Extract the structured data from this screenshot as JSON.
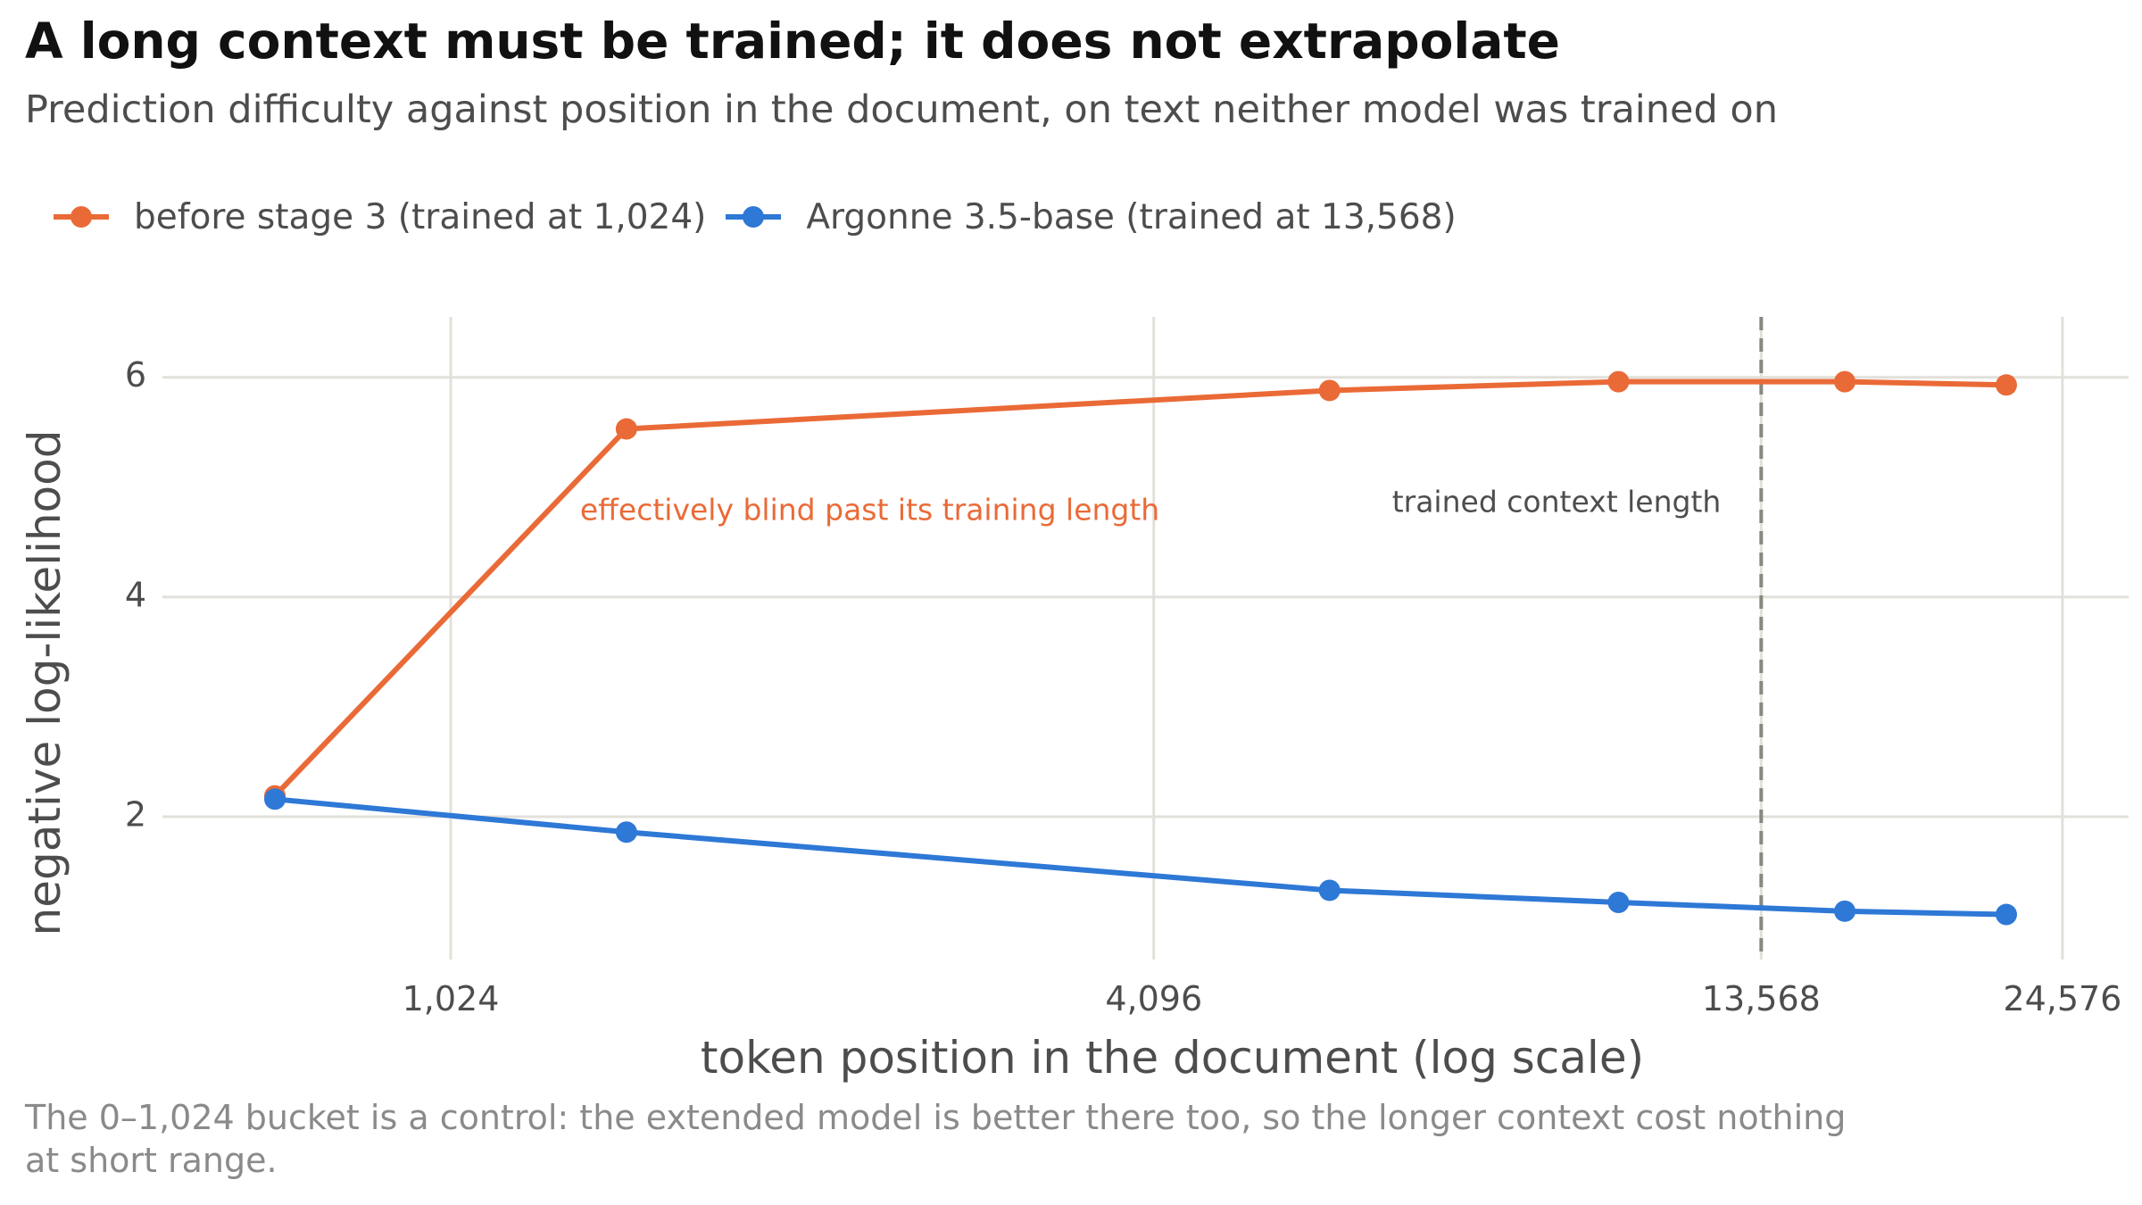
{
  "chart_data": {
    "type": "line",
    "title": "A long context must be trained; it does not extrapolate",
    "subtitle": "Prediction difficulty against position in the document, on text neither model was trained on",
    "xlabel": "token position in the document (log scale)",
    "ylabel": "negative log-likelihood",
    "x_scale": "log",
    "xlim": [
      580,
      28000
    ],
    "ylim": [
      0.7,
      6.55
    ],
    "x_ticks": [
      1024,
      4096,
      13568,
      24576
    ],
    "x_tick_labels": [
      "1,024",
      "4,096",
      "13,568",
      "24,576"
    ],
    "y_ticks": [
      2,
      4,
      6
    ],
    "y_tick_labels": [
      "2",
      "4",
      "6"
    ],
    "grid": true,
    "legend_placement": "top-left",
    "series": [
      {
        "name": "before stage 3 (trained at 1,024)",
        "color": "#ea6a37",
        "x": [
          724,
          1448,
          5793,
          10240,
          16000,
          22000
        ],
        "y": [
          2.19,
          5.53,
          5.88,
          5.96,
          5.96,
          5.93
        ]
      },
      {
        "name": "Argonne 3.5-base (trained at 13,568)",
        "color": "#2e78d6",
        "x": [
          724,
          1448,
          5793,
          10240,
          16000,
          22000
        ],
        "y": [
          2.16,
          1.86,
          1.33,
          1.22,
          1.14,
          1.11
        ]
      }
    ],
    "reference_lines": [
      {
        "axis": "x",
        "value": 13568,
        "style": "dashed",
        "color": "#888880",
        "label": "trained context length"
      }
    ],
    "annotations": [
      {
        "text": "effectively blind past its training length",
        "x": 1448,
        "y": 4.78,
        "color": "#ea6a37"
      }
    ],
    "caption": "The 0–1,024 bucket is a control: the extended model is better there too, so the longer context cost nothing at short range."
  }
}
